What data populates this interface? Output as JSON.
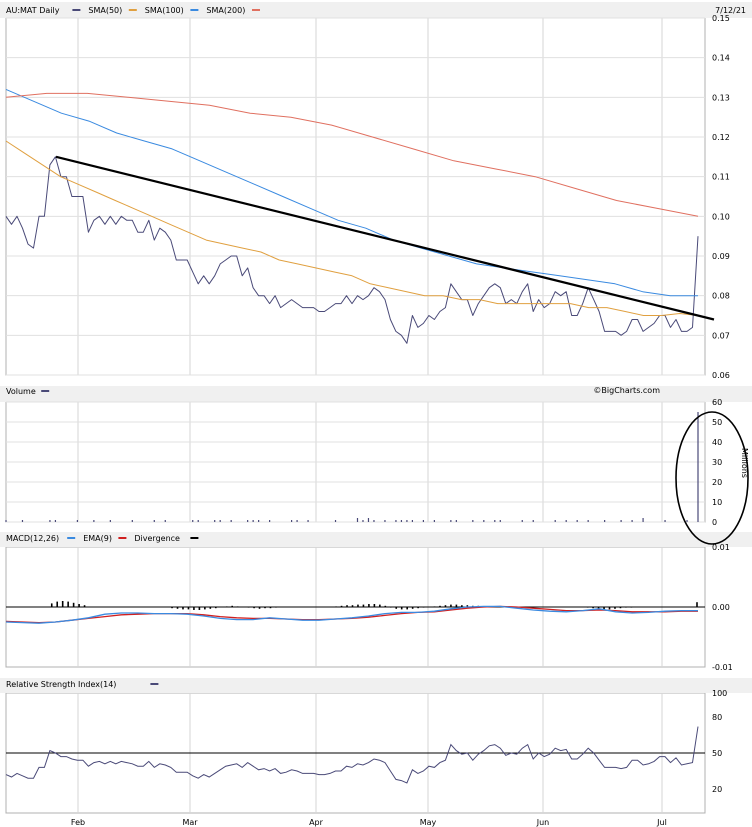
{
  "header": {
    "ticker_label": "AU:MAT Daily",
    "date": "7/12/21"
  },
  "legend_price": [
    {
      "name": "AU:MAT Daily",
      "color": "#4a4a78"
    },
    {
      "name": "SMA(50)",
      "color": "#e0a040"
    },
    {
      "name": "SMA(100)",
      "color": "#3a8ae0"
    },
    {
      "name": "SMA(200)",
      "color": "#e07060"
    }
  ],
  "legend_volume": [
    {
      "name": "Volume",
      "color": "#4a4a78"
    }
  ],
  "legend_macd": [
    {
      "name": "MACD(12,26)",
      "color": "#3a8ae0"
    },
    {
      "name": "EMA(9)",
      "color": "#d02020"
    },
    {
      "name": "Divergence",
      "color": "#000000"
    }
  ],
  "legend_rsi": [
    {
      "name": "Relative Strength Index(14)",
      "color": "#4a4a78"
    }
  ],
  "watermark": "©BigCharts.com",
  "volume_unit": "Millions",
  "x_tick_labels": [
    "Feb",
    "Mar",
    "Apr",
    "May",
    "Jun",
    "Jul"
  ],
  "chart_data": {
    "type": "line",
    "x_range": [
      "2021-01-04",
      "2021-07-12"
    ],
    "price": {
      "ylim": [
        0.06,
        0.15
      ],
      "ticks": [
        "0.15",
        "0.14",
        "0.13",
        "0.12",
        "0.11",
        "0.10",
        "0.09",
        "0.08",
        "0.07",
        "0.06"
      ],
      "series": [
        {
          "name": "AU:MAT Daily",
          "values": [
            0.1,
            0.098,
            0.1,
            0.097,
            0.093,
            0.092,
            0.1,
            0.1,
            0.113,
            0.115,
            0.11,
            0.11,
            0.105,
            0.105,
            0.105,
            0.096,
            0.099,
            0.1,
            0.098,
            0.1,
            0.098,
            0.1,
            0.099,
            0.099,
            0.096,
            0.096,
            0.099,
            0.094,
            0.097,
            0.096,
            0.094,
            0.089,
            0.089,
            0.089,
            0.086,
            0.083,
            0.085,
            0.083,
            0.085,
            0.088,
            0.089,
            0.09,
            0.09,
            0.085,
            0.087,
            0.082,
            0.08,
            0.08,
            0.078,
            0.08,
            0.077,
            0.078,
            0.079,
            0.078,
            0.077,
            0.077,
            0.077,
            0.076,
            0.076,
            0.077,
            0.078,
            0.078,
            0.08,
            0.078,
            0.08,
            0.079,
            0.08,
            0.082,
            0.081,
            0.079,
            0.074,
            0.071,
            0.07,
            0.068,
            0.075,
            0.072,
            0.073,
            0.075,
            0.074,
            0.076,
            0.077,
            0.083,
            0.081,
            0.079,
            0.079,
            0.075,
            0.078,
            0.08,
            0.082,
            0.083,
            0.082,
            0.078,
            0.079,
            0.078,
            0.081,
            0.083,
            0.076,
            0.079,
            0.077,
            0.078,
            0.081,
            0.08,
            0.081,
            0.075,
            0.075,
            0.078,
            0.082,
            0.079,
            0.076,
            0.071,
            0.071,
            0.071,
            0.07,
            0.071,
            0.074,
            0.074,
            0.071,
            0.072,
            0.073,
            0.075,
            0.075,
            0.072,
            0.074,
            0.071,
            0.071,
            0.072,
            0.095
          ]
        },
        {
          "name": "SMA(50)",
          "values": [
            0.119,
            0.116,
            0.113,
            0.11,
            0.108,
            0.106,
            0.104,
            0.102,
            0.1,
            0.098,
            0.096,
            0.094,
            0.093,
            0.092,
            0.091,
            0.089,
            0.088,
            0.087,
            0.086,
            0.085,
            0.083,
            0.082,
            0.081,
            0.08,
            0.08,
            0.079,
            0.079,
            0.078,
            0.078,
            0.078,
            0.078,
            0.078,
            0.077,
            0.077,
            0.076,
            0.075,
            0.075,
            0.0755,
            0.075
          ]
        },
        {
          "name": "SMA(100)",
          "values": [
            0.132,
            0.129,
            0.126,
            0.124,
            0.121,
            0.119,
            0.117,
            0.114,
            0.111,
            0.108,
            0.105,
            0.102,
            0.099,
            0.097,
            0.094,
            0.092,
            0.09,
            0.088,
            0.087,
            0.086,
            0.085,
            0.084,
            0.083,
            0.081,
            0.08,
            0.08
          ]
        },
        {
          "name": "SMA(200)",
          "values": [
            0.13,
            0.131,
            0.131,
            0.13,
            0.129,
            0.128,
            0.126,
            0.125,
            0.123,
            0.12,
            0.117,
            0.114,
            0.112,
            0.11,
            0.107,
            0.104,
            0.102,
            0.1
          ]
        },
        {
          "name": "Trendline",
          "values": [
            0.115,
            0.074
          ]
        }
      ]
    },
    "volume": {
      "ylim": [
        0,
        60
      ],
      "ticks": [
        "60",
        "50",
        "40",
        "30",
        "20",
        "10",
        "0"
      ],
      "max_spike_millions": 55
    },
    "macd": {
      "ylim": [
        -0.01,
        0.01
      ],
      "ticks": [
        "0.01",
        "0.00",
        "-0.01"
      ]
    },
    "rsi": {
      "ylim": [
        0,
        100
      ],
      "ticks": [
        "100",
        "80",
        "50",
        "20"
      ],
      "reference_line": 50,
      "values": [
        32,
        30,
        33,
        31,
        29,
        29,
        38,
        38,
        52,
        50,
        47,
        47,
        45,
        44,
        44,
        39,
        42,
        43,
        41,
        43,
        41,
        43,
        42,
        41,
        39,
        39,
        43,
        38,
        41,
        40,
        38,
        34,
        34,
        34,
        31,
        29,
        32,
        30,
        33,
        36,
        39,
        40,
        41,
        38,
        42,
        39,
        36,
        37,
        35,
        37,
        33,
        34,
        36,
        35,
        33,
        33,
        33,
        32,
        32,
        33,
        35,
        35,
        39,
        38,
        41,
        40,
        42,
        45,
        44,
        42,
        35,
        28,
        27,
        25,
        36,
        33,
        35,
        39,
        38,
        42,
        44,
        57,
        52,
        49,
        50,
        44,
        49,
        52,
        56,
        57,
        54,
        48,
        50,
        49,
        54,
        57,
        45,
        50,
        47,
        49,
        54,
        52,
        53,
        45,
        45,
        49,
        54,
        50,
        44,
        38,
        38,
        38,
        37,
        38,
        44,
        44,
        40,
        41,
        43,
        47,
        47,
        42,
        46,
        40,
        41,
        42,
        72
      ]
    },
    "annotation": "circled volume spike on last day"
  }
}
